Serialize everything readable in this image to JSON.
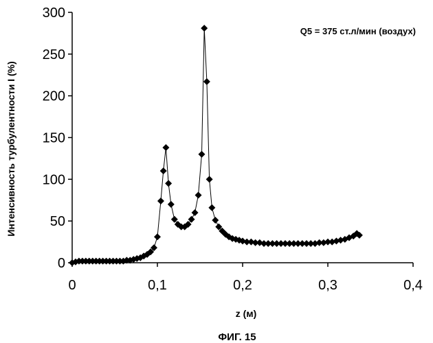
{
  "chart_data": {
    "type": "line",
    "title": "",
    "annotation": "Q5 = 375 ст.л/мин (воздух)",
    "caption": "ФИГ. 15",
    "xlabel": "z (м)",
    "ylabel": "Интенсивность турбулентности I (%)",
    "xlim": [
      0,
      0.4
    ],
    "ylim": [
      0,
      300
    ],
    "x_ticks": [
      0,
      0.1,
      0.2,
      0.3,
      0.4
    ],
    "x_tick_labels": [
      "0",
      "0,1",
      "0,2",
      "0,3",
      "0,4"
    ],
    "y_ticks": [
      0,
      50,
      100,
      150,
      200,
      250,
      300
    ],
    "y_tick_labels": [
      "0",
      "50",
      "100",
      "150",
      "200",
      "250",
      "300"
    ],
    "grid": false,
    "legend": "none",
    "marker": "diamond",
    "color": "#000000",
    "series": [
      {
        "x": [
          0,
          0.004,
          0.008,
          0.012,
          0.016,
          0.02,
          0.024,
          0.028,
          0.032,
          0.036,
          0.04,
          0.044,
          0.048,
          0.052,
          0.056,
          0.06,
          0.064,
          0.068,
          0.072,
          0.076,
          0.08,
          0.084,
          0.088,
          0.092,
          0.096,
          0.1,
          0.104,
          0.107,
          0.11,
          0.113,
          0.116,
          0.12,
          0.124,
          0.128,
          0.132,
          0.136,
          0.14,
          0.144,
          0.148,
          0.152,
          0.155,
          0.158,
          0.161,
          0.164,
          0.168,
          0.172,
          0.176,
          0.18,
          0.184,
          0.188,
          0.192,
          0.196,
          0.2,
          0.205,
          0.21,
          0.215,
          0.22,
          0.225,
          0.23,
          0.235,
          0.24,
          0.245,
          0.25,
          0.255,
          0.26,
          0.265,
          0.27,
          0.275,
          0.28,
          0.285,
          0.29,
          0.295,
          0.3,
          0.305,
          0.31,
          0.315,
          0.32,
          0.325,
          0.33,
          0.334,
          0.337
        ],
        "values": [
          0,
          1,
          2,
          2,
          2,
          2,
          2,
          2,
          2,
          2,
          2,
          2,
          2,
          2,
          2,
          2,
          3,
          3,
          4,
          5,
          6,
          8,
          10,
          13,
          18,
          31,
          74,
          110,
          138,
          95,
          70,
          52,
          46,
          43,
          43,
          46,
          52,
          60,
          81,
          130,
          281,
          217,
          100,
          66,
          51,
          43,
          38,
          34,
          31,
          29,
          28,
          27,
          26,
          25,
          25,
          24,
          24,
          23,
          23,
          23,
          23,
          23,
          23,
          23,
          23,
          23,
          23,
          23,
          23,
          23,
          24,
          24,
          25,
          25,
          26,
          27,
          28,
          30,
          32,
          35,
          33
        ]
      }
    ]
  }
}
